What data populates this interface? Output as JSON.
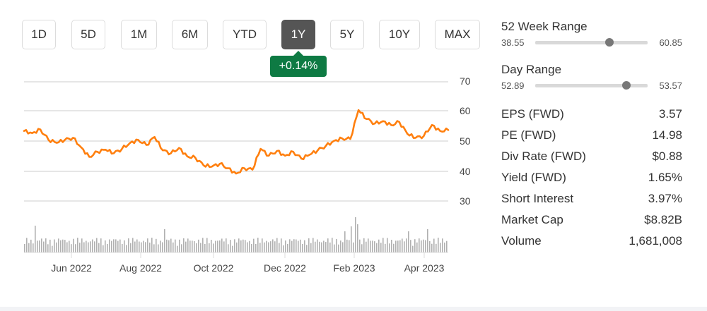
{
  "range_selector": {
    "buttons": [
      {
        "label": "1D",
        "active": false
      },
      {
        "label": "5D",
        "active": false
      },
      {
        "label": "1M",
        "active": false
      },
      {
        "label": "6M",
        "active": false
      },
      {
        "label": "YTD",
        "active": false
      },
      {
        "label": "1Y",
        "active": true
      },
      {
        "label": "5Y",
        "active": false
      },
      {
        "label": "10Y",
        "active": false
      },
      {
        "label": "MAX",
        "active": false
      }
    ],
    "change_badge": "+0.14%"
  },
  "colors": {
    "line": "#ff7f0e",
    "badge": "#0e7a43",
    "active_button": "#555555",
    "volume_bar": "#b0b0b0",
    "grid": "#dddddd"
  },
  "stats": {
    "week52": {
      "title": "52 Week Range",
      "low": "38.55",
      "high": "60.85",
      "position_pct": 66
    },
    "day": {
      "title": "Day Range",
      "low": "52.89",
      "high": "53.57",
      "position_pct": 81
    },
    "rows": [
      {
        "label": "EPS (FWD)",
        "value": "3.57"
      },
      {
        "label": "PE (FWD)",
        "value": "14.98"
      },
      {
        "label": "Div Rate (FWD)",
        "value": "$0.88"
      },
      {
        "label": "Yield (FWD)",
        "value": "1.65%"
      },
      {
        "label": "Short Interest",
        "value": "3.97%"
      },
      {
        "label": "Market Cap",
        "value": "$8.82B"
      },
      {
        "label": "Volume",
        "value": "1,681,008"
      }
    ]
  },
  "chart_data": {
    "type": "line",
    "title": "",
    "xlabel": "",
    "ylabel": "",
    "ylim": [
      30,
      70
    ],
    "y_ticks": [
      "70",
      "60",
      "50",
      "40",
      "30"
    ],
    "x_ticks": [
      "Jun 2022",
      "Aug 2022",
      "Oct 2022",
      "Dec 2022",
      "Feb 2023",
      "Apr 2023"
    ],
    "grid": true,
    "series": [
      {
        "name": "Price",
        "x": [
          "2022-04-18",
          "2022-04-25",
          "2022-05-02",
          "2022-05-09",
          "2022-05-16",
          "2022-05-23",
          "2022-05-30",
          "2022-06-06",
          "2022-06-13",
          "2022-06-20",
          "2022-06-27",
          "2022-07-04",
          "2022-07-11",
          "2022-07-18",
          "2022-07-25",
          "2022-08-01",
          "2022-08-08",
          "2022-08-15",
          "2022-08-22",
          "2022-08-29",
          "2022-09-05",
          "2022-09-12",
          "2022-09-19",
          "2022-09-26",
          "2022-10-03",
          "2022-10-10",
          "2022-10-17",
          "2022-10-24",
          "2022-10-31",
          "2022-11-07",
          "2022-11-14",
          "2022-11-21",
          "2022-11-28",
          "2022-12-05",
          "2022-12-12",
          "2022-12-19",
          "2022-12-26",
          "2023-01-02",
          "2023-01-09",
          "2023-01-16",
          "2023-01-23",
          "2023-01-30",
          "2023-02-06",
          "2023-02-13",
          "2023-02-20",
          "2023-02-27",
          "2023-03-06",
          "2023-03-13",
          "2023-03-20",
          "2023-03-27",
          "2023-04-03",
          "2023-04-10",
          "2023-04-17"
        ],
        "values": [
          53.5,
          52.8,
          54.0,
          50.5,
          49.5,
          50.5,
          51.2,
          48.0,
          44.8,
          46.5,
          47.2,
          46.0,
          47.5,
          49.5,
          50.5,
          48.8,
          51.5,
          47.0,
          46.0,
          47.8,
          45.0,
          44.5,
          42.0,
          41.5,
          42.5,
          41.0,
          39.2,
          41.0,
          40.5,
          47.5,
          45.2,
          46.8,
          45.2,
          46.5,
          44.2,
          45.5,
          47.0,
          48.5,
          50.2,
          51.0,
          50.8,
          60.5,
          57.5,
          56.0,
          56.8,
          55.5,
          56.5,
          52.5,
          51.2,
          51.8,
          55.5,
          53.5,
          53.8
        ]
      }
    ],
    "volume": {
      "description": "daily volume bars beneath price chart (unlabeled axis)",
      "notable_spikes": [
        "late Apr 2022",
        "late May 2022",
        "late Jul 2022",
        "early Feb 2023",
        "Mar 2023"
      ]
    }
  }
}
